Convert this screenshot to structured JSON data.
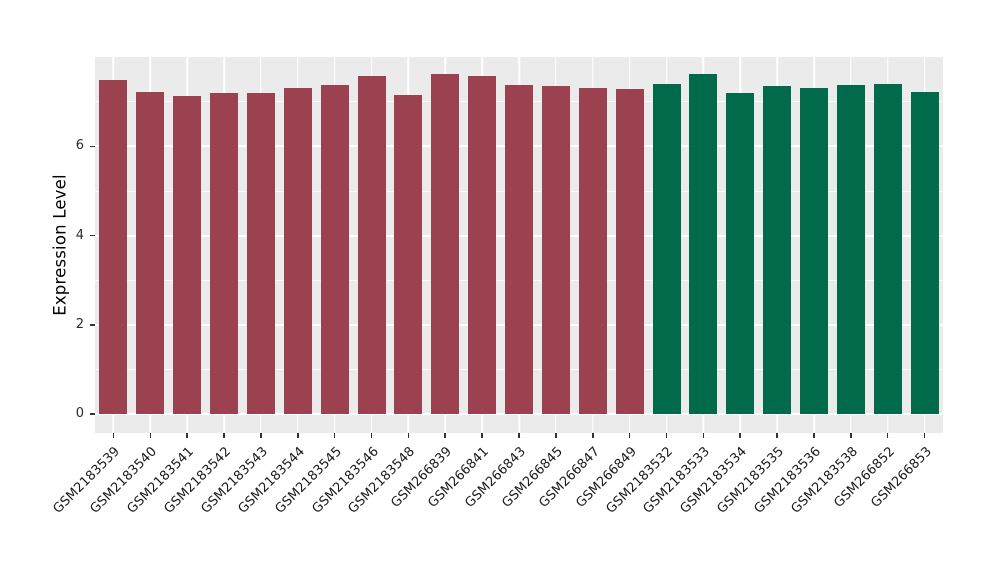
{
  "chart_data": {
    "type": "bar",
    "title": "",
    "xlabel": "",
    "ylabel": "Expression Level",
    "ylim": [
      0,
      8
    ],
    "yticks": [
      0,
      2,
      4,
      6
    ],
    "grid": "white major gridlines at even values, thin white minor gridlines at odd values, vertical white gridline at each category center, gray panel background",
    "legend_position": "none",
    "categories": [
      "GSM2183539",
      "GSM2183540",
      "GSM2183541",
      "GSM2183542",
      "GSM2183543",
      "GSM2183544",
      "GSM2183545",
      "GSM2183546",
      "GSM2183548",
      "GSM266839",
      "GSM266841",
      "GSM266843",
      "GSM266845",
      "GSM266847",
      "GSM266849",
      "GSM2183532",
      "GSM2183533",
      "GSM2183534",
      "GSM2183535",
      "GSM2183536",
      "GSM2183538",
      "GSM266852",
      "GSM266853"
    ],
    "values": [
      7.5,
      7.22,
      7.12,
      7.2,
      7.2,
      7.32,
      7.38,
      7.59,
      7.15,
      7.63,
      7.59,
      7.38,
      7.35,
      7.31,
      7.28,
      7.41,
      7.63,
      7.2,
      7.36,
      7.32,
      7.37,
      7.39,
      7.22
    ],
    "color_groups": [
      {
        "color": "#9b4150",
        "count": 15,
        "from_category": "GSM2183539",
        "to_category": "GSM266849"
      },
      {
        "color": "#016a4a",
        "count": 8,
        "from_category": "GSM2183532",
        "to_category": "GSM266853"
      }
    ]
  },
  "colors": {
    "figure_background": "#ffffff",
    "panel_background": "#ebebeb",
    "grid_major": "#ffffff",
    "bar_maroon": "#9b4150",
    "bar_green": "#016a4a",
    "axis_text": "#1a1a1a",
    "tick_mark": "#333333"
  }
}
